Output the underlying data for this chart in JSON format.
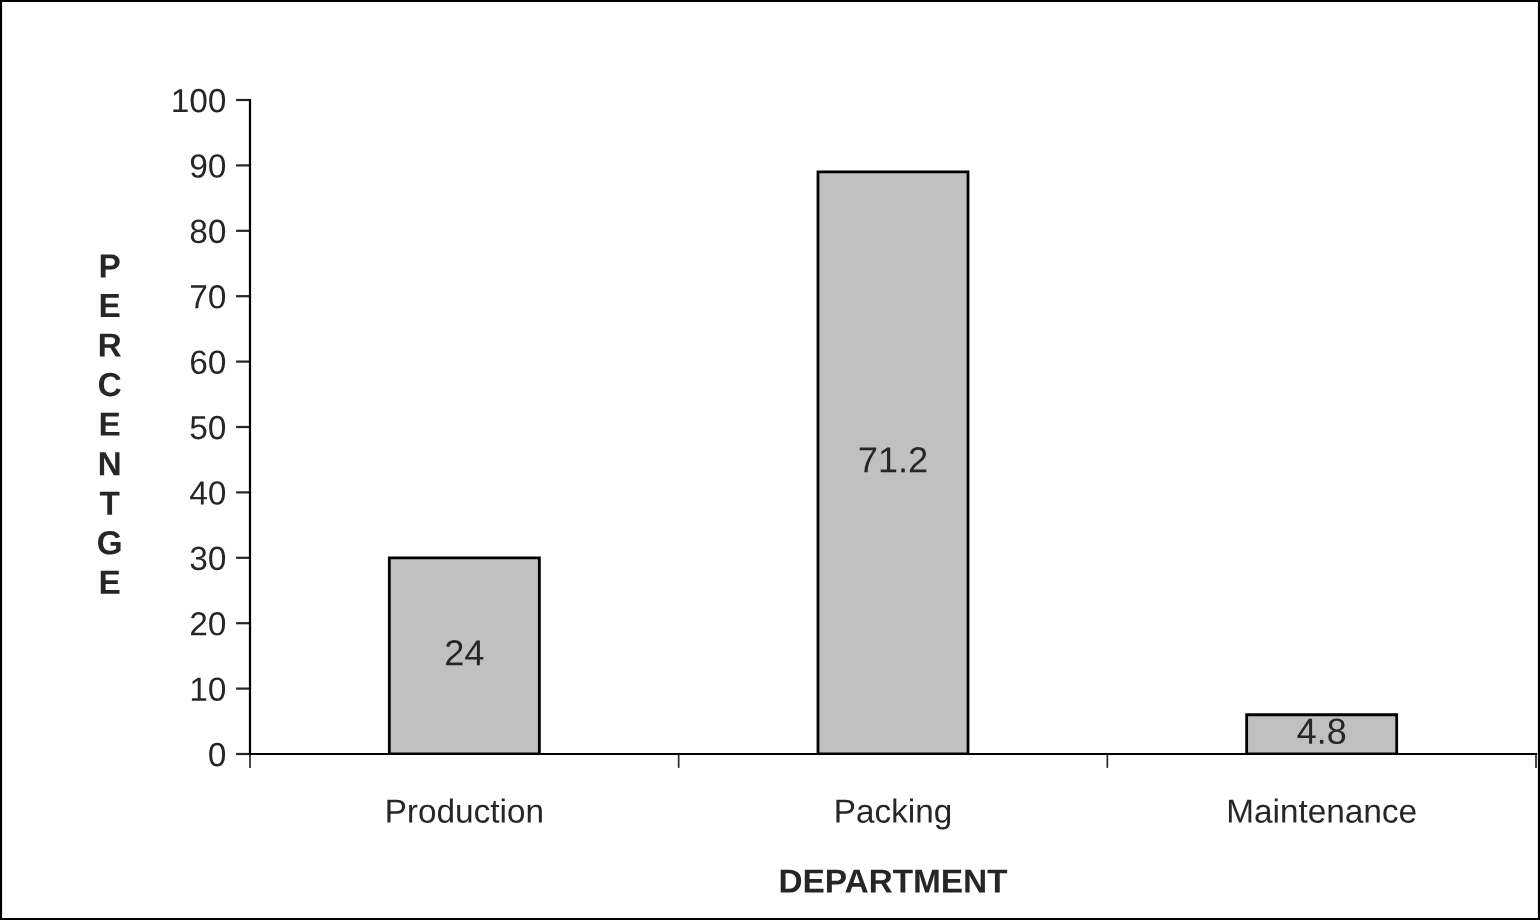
{
  "chart_data": {
    "type": "bar",
    "xlabel": "DEPARTMENT",
    "ylabel": "PERCENTGE",
    "categories": [
      "Production",
      "Packing",
      "Maintenance"
    ],
    "values": [
      30,
      89,
      6
    ],
    "annotations": [
      "24",
      "71.2",
      "4.8"
    ],
    "color": "#c0c0c0",
    "ylim": [
      0,
      100
    ],
    "yticks": [
      0,
      10,
      20,
      30,
      40,
      50,
      60,
      70,
      80,
      90,
      100
    ],
    "grid": false,
    "legend": false
  }
}
